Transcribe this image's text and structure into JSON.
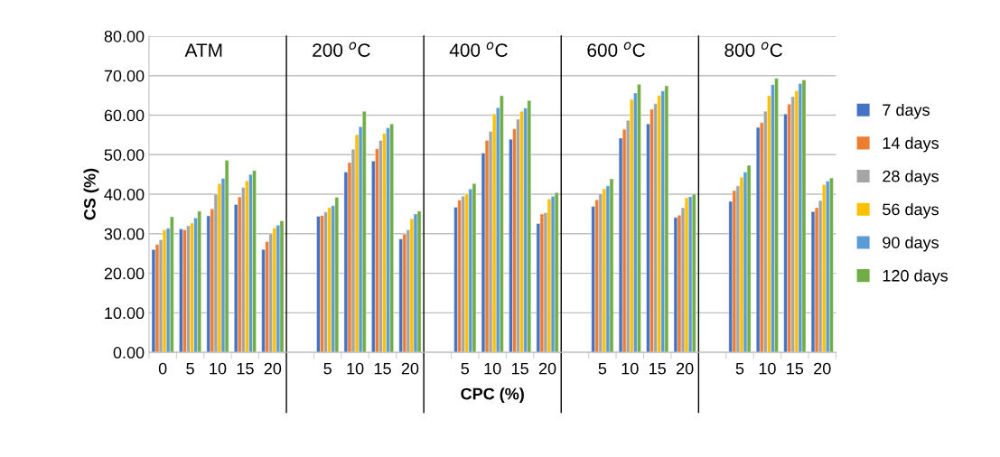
{
  "chart_data": {
    "type": "bar",
    "xlabel": "CPC (%)",
    "ylabel": "CS (%)",
    "categories": [
      "0",
      "5",
      "10",
      "15",
      "20",
      null,
      "5",
      "10",
      "15",
      "20",
      null,
      "5",
      "10",
      "15",
      "20",
      null,
      "5",
      "10",
      "15",
      "20",
      null,
      "5",
      "10",
      "15",
      "20"
    ],
    "series": [
      {
        "name": "7 days",
        "color": "#4472c4",
        "values": [
          26,
          31.2,
          34.5,
          37.4,
          26,
          null,
          34.4,
          45.6,
          48.4,
          28.7,
          null,
          36.7,
          50.4,
          53.9,
          32.6,
          null,
          36.9,
          54.2,
          57.8,
          34.1,
          null,
          38.2,
          56.9,
          60.3,
          35.6
        ]
      },
      {
        "name": "14 days",
        "color": "#ed7d31",
        "values": [
          27.3,
          31,
          36.3,
          39.3,
          28,
          null,
          34.6,
          48,
          51.5,
          29.9,
          null,
          38.5,
          53.6,
          56.5,
          35,
          null,
          38.6,
          56.4,
          61.5,
          34.7,
          null,
          40.9,
          58.1,
          62.8,
          36.6
        ]
      },
      {
        "name": "28 days",
        "color": "#a5a5a5",
        "values": [
          28.5,
          32,
          40,
          41.7,
          30,
          null,
          35.5,
          51.4,
          53.6,
          31,
          null,
          39.5,
          55.9,
          59,
          35.3,
          null,
          40.1,
          58.7,
          62.9,
          36.6,
          null,
          42.1,
          61,
          64.7,
          38.4
        ]
      },
      {
        "name": "56 days",
        "color": "#ffc000",
        "values": [
          31,
          32.7,
          42.7,
          43.4,
          31.5,
          null,
          36.6,
          55.1,
          55.4,
          33.8,
          null,
          40.1,
          60.3,
          61,
          38.8,
          null,
          41.4,
          64,
          65,
          39.1,
          null,
          44.3,
          64.9,
          66.2,
          42.4
        ]
      },
      {
        "name": "90 days",
        "color": "#5b9bd5",
        "values": [
          31.4,
          34,
          44,
          45,
          32.2,
          null,
          37.1,
          57.1,
          56.8,
          35,
          null,
          41.3,
          61.9,
          61.8,
          39.5,
          null,
          42.1,
          65.6,
          66.1,
          39.4,
          null,
          45.6,
          67.7,
          68,
          43.3
        ]
      },
      {
        "name": "120 days",
        "color": "#70ad47",
        "values": [
          34.3,
          35.7,
          48.6,
          46,
          33.3,
          null,
          39.2,
          61,
          57.8,
          35.7,
          null,
          42.7,
          64.9,
          63.7,
          40.4,
          null,
          43.9,
          67.8,
          67.4,
          40,
          null,
          47.3,
          69.3,
          68.9,
          44.1
        ]
      }
    ],
    "ylim": [
      0,
      80
    ],
    "yticks": [
      {
        "value": 0,
        "label": "0.00"
      },
      {
        "value": 10,
        "label": "10.00"
      },
      {
        "value": 20,
        "label": "20.00"
      },
      {
        "value": 30,
        "label": "30.00"
      },
      {
        "value": 40,
        "label": "40.00"
      },
      {
        "value": 50,
        "label": "50.00"
      },
      {
        "value": 60,
        "label": "60.00"
      },
      {
        "value": 70,
        "label": "70.00"
      },
      {
        "value": 80,
        "label": "80.00"
      }
    ],
    "grid": "y",
    "legend": "right",
    "annotations": [
      "ATM",
      "200 $^{o}$C",
      "400 $^{o}$C",
      "600 $^{o}$C",
      "800 $^{o}$C"
    ]
  }
}
